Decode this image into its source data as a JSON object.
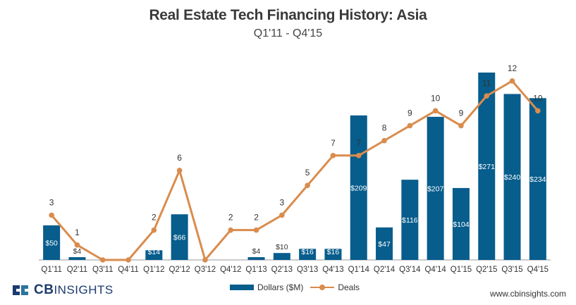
{
  "chart_data": {
    "type": "bar+line",
    "title": "Real Estate Tech Financing History: Asia",
    "subtitle": "Q1'11 - Q4'15",
    "categories": [
      "Q1'11",
      "Q2'11",
      "Q3'11",
      "Q4'11",
      "Q1'12",
      "Q2'12",
      "Q3'12",
      "Q4'12",
      "Q1'13",
      "Q2'13",
      "Q3'13",
      "Q4'13",
      "Q1'14",
      "Q2'14",
      "Q3'14",
      "Q4'14",
      "Q1'15",
      "Q2'15",
      "Q3'15",
      "Q4'15"
    ],
    "series": [
      {
        "name": "Dollars ($M)",
        "type": "bar",
        "values": [
          50,
          4,
          0,
          0,
          14,
          66,
          0,
          0,
          4,
          10,
          16,
          16,
          209,
          47,
          116,
          207,
          104,
          271,
          240,
          234
        ],
        "labels": [
          "$50",
          "$4",
          "",
          "",
          "$14",
          "$66",
          "",
          "",
          "$4",
          "$10",
          "$16",
          "$16",
          "$209",
          "$47",
          "$116",
          "$207",
          "$104",
          "$271",
          "$240",
          "$234"
        ],
        "color": "#075d8c"
      },
      {
        "name": "Deals",
        "type": "line",
        "values": [
          3,
          1,
          0,
          0,
          2,
          6,
          0,
          2,
          2,
          3,
          5,
          7,
          7,
          8,
          9,
          10,
          9,
          11,
          12,
          10
        ],
        "labels": [
          "3",
          "1",
          "",
          "",
          "2",
          "6",
          "",
          "2",
          "2",
          "3",
          "5",
          "7",
          "7",
          "8",
          "9",
          "10",
          "9",
          "11",
          "12",
          "10"
        ],
        "color": "#d98c4d"
      }
    ],
    "legend_position": "bottom",
    "grid": false
  },
  "branding": {
    "logo_bold": "CB",
    "logo_thin": "INSIGHTS",
    "website": "www.cbinsights.com"
  }
}
